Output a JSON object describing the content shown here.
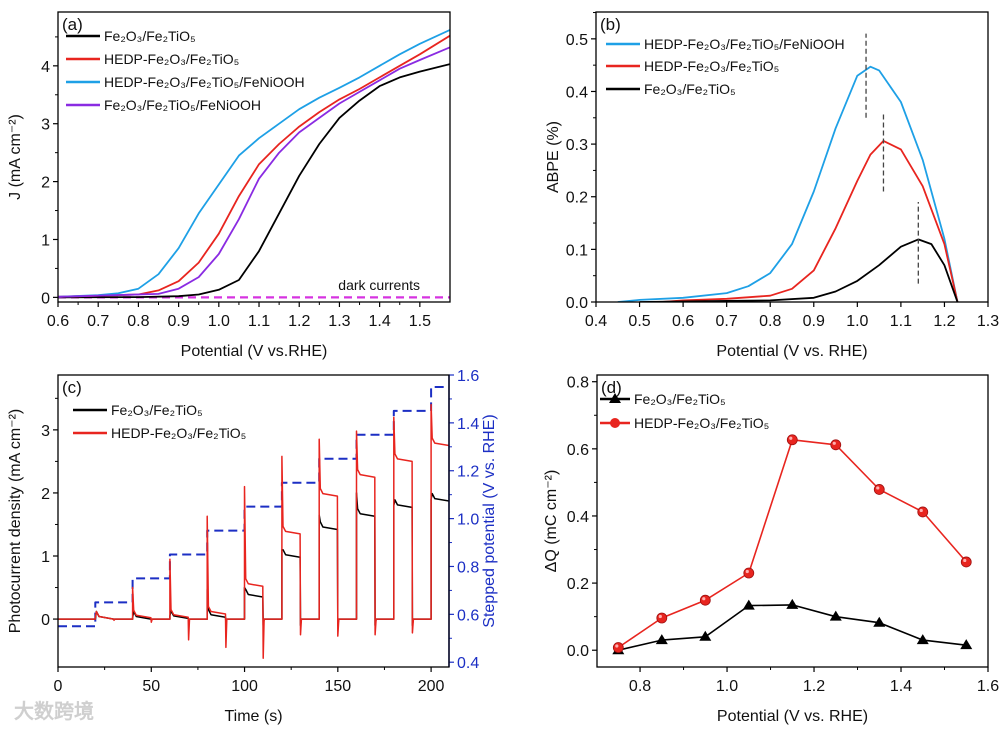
{
  "watermark": "大数跨境",
  "chart_data": [
    {
      "panel": "(a)",
      "type": "line",
      "xlabel": "Potential (V vs.RHE)",
      "ylabel": "J (mA cm⁻²)",
      "xlim": [
        0.6,
        1.575
      ],
      "ylim": [
        -0.08,
        4.93
      ],
      "xticks": [
        0.6,
        0.7,
        0.8,
        0.9,
        1.0,
        1.1,
        1.2,
        1.3,
        1.4,
        1.5
      ],
      "xtick_labels": [
        "0.6",
        "0.7",
        "0.8",
        "0.9",
        "1.0",
        "1.1",
        "1.2",
        "1.3",
        "1.4",
        "1.5"
      ],
      "yticks": [
        0,
        1,
        2,
        3,
        4
      ],
      "ytick_labels": [
        "0",
        "1",
        "2",
        "3",
        "4"
      ],
      "annotation": "dark currents",
      "legend_position": "top-left",
      "series": [
        {
          "name": "Fe₂O₃/Fe₂TiO₅",
          "color": "#000000",
          "x": [
            0.6,
            0.8,
            0.9,
            0.95,
            1.0,
            1.05,
            1.1,
            1.15,
            1.2,
            1.25,
            1.3,
            1.35,
            1.4,
            1.45,
            1.5,
            1.575
          ],
          "y": [
            0,
            0.005,
            0.02,
            0.05,
            0.13,
            0.3,
            0.8,
            1.45,
            2.1,
            2.65,
            3.1,
            3.4,
            3.65,
            3.8,
            3.9,
            4.03
          ]
        },
        {
          "name": "HEDP-Fe₂O₃/Fe₂TiO₅",
          "color": "#e8251f",
          "x": [
            0.6,
            0.8,
            0.85,
            0.9,
            0.95,
            1.0,
            1.05,
            1.1,
            1.15,
            1.2,
            1.25,
            1.3,
            1.35,
            1.4,
            1.45,
            1.5,
            1.575
          ],
          "y": [
            0.01,
            0.05,
            0.12,
            0.28,
            0.6,
            1.1,
            1.75,
            2.3,
            2.65,
            2.95,
            3.2,
            3.42,
            3.6,
            3.8,
            4.0,
            4.2,
            4.52
          ]
        },
        {
          "name": "HEDP-Fe₂O₃/Fe₂TiO₅/FeNiOOH",
          "color": "#1ea0e6",
          "x": [
            0.6,
            0.7,
            0.75,
            0.8,
            0.85,
            0.9,
            0.95,
            1.0,
            1.05,
            1.1,
            1.15,
            1.2,
            1.25,
            1.3,
            1.35,
            1.4,
            1.45,
            1.5,
            1.575
          ],
          "y": [
            0.01,
            0.04,
            0.07,
            0.15,
            0.4,
            0.85,
            1.45,
            1.95,
            2.45,
            2.75,
            3.0,
            3.25,
            3.45,
            3.62,
            3.8,
            4.0,
            4.2,
            4.38,
            4.62
          ]
        },
        {
          "name": "Fe₂O₃/Fe₂TiO₅/FeNiOOH",
          "color": "#8a2be2",
          "x": [
            0.6,
            0.85,
            0.9,
            0.95,
            1.0,
            1.05,
            1.1,
            1.15,
            1.2,
            1.25,
            1.3,
            1.35,
            1.4,
            1.45,
            1.5,
            1.575
          ],
          "y": [
            0.01,
            0.06,
            0.15,
            0.35,
            0.75,
            1.35,
            2.05,
            2.5,
            2.85,
            3.1,
            3.35,
            3.55,
            3.75,
            3.95,
            4.1,
            4.32
          ]
        }
      ],
      "dark_current": {
        "color": "#d633e0",
        "x": [
          0.6,
          1.575
        ],
        "y": [
          0,
          0
        ]
      }
    },
    {
      "panel": "(b)",
      "type": "line",
      "xlabel": "Potential (V vs. RHE)",
      "ylabel": "ABPE (%)",
      "xlim": [
        0.4,
        1.3
      ],
      "ylim": [
        0,
        0.551
      ],
      "xticks": [
        0.4,
        0.5,
        0.6,
        0.7,
        0.8,
        0.9,
        1.0,
        1.1,
        1.2,
        1.3
      ],
      "xtick_labels": [
        "0.4",
        "0.5",
        "0.6",
        "0.7",
        "0.8",
        "0.9",
        "1.0",
        "1.1",
        "1.2",
        "1.3"
      ],
      "yticks": [
        0,
        0.1,
        0.2,
        0.3,
        0.4,
        0.5
      ],
      "ytick_labels": [
        "0.0",
        "0.1",
        "0.2",
        "0.3",
        "0.4",
        "0.5"
      ],
      "legend_position": "top-left",
      "series": [
        {
          "name": "HEDP-Fe₂O₃/Fe₂TiO₅/FeNiOOH",
          "color": "#1ea0e6",
          "x": [
            0.45,
            0.5,
            0.6,
            0.7,
            0.75,
            0.8,
            0.85,
            0.9,
            0.95,
            1.0,
            1.03,
            1.05,
            1.1,
            1.15,
            1.2,
            1.23
          ],
          "y": [
            0,
            0.004,
            0.008,
            0.017,
            0.03,
            0.055,
            0.11,
            0.21,
            0.33,
            0.43,
            0.447,
            0.44,
            0.38,
            0.27,
            0.12,
            0
          ]
        },
        {
          "name": "HEDP-Fe₂O₃/Fe₂TiO₅",
          "color": "#e8251f",
          "x": [
            0.55,
            0.6,
            0.7,
            0.8,
            0.85,
            0.9,
            0.95,
            1.0,
            1.03,
            1.06,
            1.1,
            1.15,
            1.2,
            1.23
          ],
          "y": [
            0,
            0.003,
            0.006,
            0.012,
            0.025,
            0.06,
            0.14,
            0.23,
            0.28,
            0.306,
            0.29,
            0.22,
            0.11,
            0
          ]
        },
        {
          "name": "Fe₂O₃/Fe₂TiO₅",
          "color": "#000000",
          "x": [
            0.5,
            0.7,
            0.8,
            0.9,
            0.95,
            1.0,
            1.05,
            1.1,
            1.14,
            1.17,
            1.2,
            1.23
          ],
          "y": [
            0,
            0.002,
            0.003,
            0.008,
            0.02,
            0.04,
            0.07,
            0.105,
            0.119,
            0.11,
            0.07,
            0
          ]
        }
      ],
      "peak_markers": [
        {
          "x": 1.02,
          "y": [
            0.35,
            0.51
          ]
        },
        {
          "x": 1.06,
          "y": [
            0.21,
            0.36
          ]
        },
        {
          "x": 1.14,
          "y": [
            0.035,
            0.19
          ]
        }
      ]
    },
    {
      "panel": "(c)",
      "type": "line",
      "xlabel": "Time (s)",
      "ylabel": "Photocurrent density (mA cm⁻²)",
      "y2label": "Stepped potential (V vs. RHE)",
      "xlim": [
        0,
        209.6
      ],
      "ylim": [
        -0.76,
        3.87
      ],
      "y2lim": [
        0.38,
        1.6
      ],
      "xticks": [
        0,
        50,
        100,
        150,
        200
      ],
      "xtick_labels": [
        "0",
        "50",
        "100",
        "150",
        "200"
      ],
      "yticks": [
        0,
        1,
        2,
        3
      ],
      "ytick_labels": [
        "0",
        "1",
        "2",
        "3"
      ],
      "y2ticks": [
        0.4,
        0.6,
        0.8,
        1.0,
        1.2,
        1.4,
        1.6
      ],
      "y2tick_labels": [
        "0.4",
        "0.6",
        "0.8",
        "1.0",
        "1.2",
        "1.4",
        "1.6"
      ],
      "legend_position": "top-left",
      "light_on_times": [
        20,
        40,
        60,
        80,
        100,
        120,
        140,
        160,
        180,
        200
      ],
      "light_duration": 10,
      "series": [
        {
          "name": "Fe₂O₃/Fe₂TiO₅",
          "color": "#000000",
          "plateau": [
            0,
            0,
            0.01,
            0.03,
            0.35,
            0.98,
            1.42,
            1.63,
            1.77,
            1.87
          ],
          "spike": [
            0,
            0.02,
            0.05,
            0.47,
            0.5,
            1.1,
            1.65,
            2.0,
            1.8,
            1.9
          ],
          "dip": [
            0,
            0,
            0,
            -0.05,
            -0.1,
            -0.1,
            -0.1,
            -0.1,
            -0.1,
            0
          ]
        },
        {
          "name": "HEDP-Fe₂O₃/Fe₂TiO₅",
          "color": "#e8251f",
          "plateau": [
            0,
            0.02,
            0.03,
            0.08,
            0.52,
            1.35,
            1.95,
            2.25,
            2.5,
            2.75
          ],
          "spike": [
            0.03,
            0.5,
            0.95,
            1.63,
            2.1,
            2.58,
            2.85,
            2.98,
            3.2,
            3.4
          ],
          "dip": [
            -0.02,
            -0.05,
            -0.33,
            -0.45,
            -0.62,
            -0.25,
            -0.27,
            -0.25,
            -0.22,
            0
          ]
        }
      ],
      "stepped_potential": {
        "color": "#1c2fc4",
        "t_start": [
          0,
          20,
          40,
          60,
          80,
          100,
          120,
          140,
          160,
          180,
          200
        ],
        "v": [
          0.55,
          0.65,
          0.75,
          0.85,
          0.95,
          1.05,
          1.15,
          1.25,
          1.35,
          1.45,
          1.55
        ]
      }
    },
    {
      "panel": "(d)",
      "type": "line",
      "xlabel": "Potential (V vs. RHE)",
      "ylabel": "ΔQ (mC cm⁻²)",
      "xlim": [
        0.701,
        1.6
      ],
      "ylim": [
        -0.05,
        0.82
      ],
      "xticks": [
        0.8,
        1.0,
        1.2,
        1.4,
        1.6
      ],
      "xtick_labels": [
        "0.8",
        "1.0",
        "1.2",
        "1.4",
        "1.6"
      ],
      "yticks": [
        0,
        0.2,
        0.4,
        0.6,
        0.8
      ],
      "ytick_labels": [
        "0.0",
        "0.2",
        "0.4",
        "0.6",
        "0.8"
      ],
      "legend_position": "top-left",
      "x": [
        0.75,
        0.85,
        0.95,
        1.05,
        1.15,
        1.25,
        1.35,
        1.45,
        1.55
      ],
      "series": [
        {
          "name": "Fe₂O₃/Fe₂TiO₅",
          "color": "#000000",
          "marker": "triangle",
          "values": [
            0.0,
            0.03,
            0.04,
            0.133,
            0.135,
            0.1,
            0.082,
            0.03,
            0.015
          ]
        },
        {
          "name": "HEDP-Fe₂O₃/Fe₂TiO₅",
          "color": "#e8251f",
          "marker": "circle",
          "values": [
            0.008,
            0.096,
            0.149,
            0.23,
            0.627,
            0.612,
            0.479,
            0.412,
            0.263
          ]
        }
      ]
    }
  ]
}
